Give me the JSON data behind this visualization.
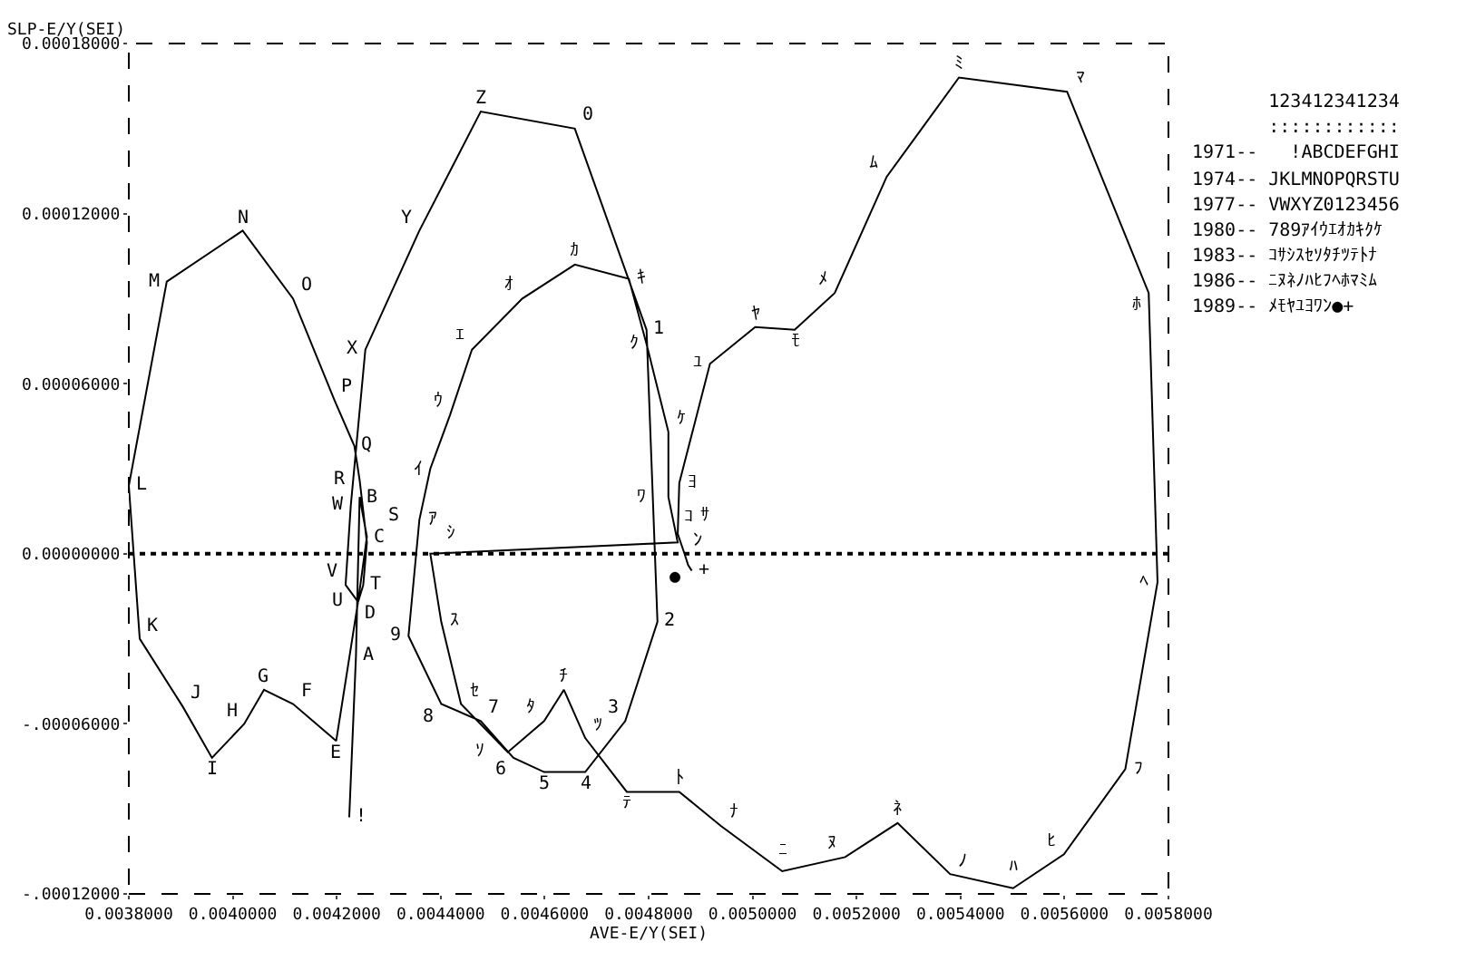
{
  "chart_data": {
    "type": "line",
    "xlabel": "AVE-E/Y(SEI)",
    "ylabel": "SLP-E/Y(SEI)",
    "xlim": [
      0.0038,
      0.0058
    ],
    "xticks": [
      {
        "value": 0.0038,
        "label": "0.0038000"
      },
      {
        "value": 0.004,
        "label": "0.0040000"
      },
      {
        "value": 0.0042,
        "label": "0.0042000"
      },
      {
        "value": 0.0044,
        "label": "0.0044000"
      },
      {
        "value": 0.0046,
        "label": "0.0046000"
      },
      {
        "value": 0.0048,
        "label": "0.0048000"
      },
      {
        "value": 0.005,
        "label": "0.0050000"
      },
      {
        "value": 0.0052,
        "label": "0.0052000"
      },
      {
        "value": 0.0054,
        "label": "0.0054000"
      },
      {
        "value": 0.0056,
        "label": "0.0056000"
      },
      {
        "value": 0.0058,
        "label": "0.0058000"
      }
    ],
    "ylim": [
      -0.00012,
      0.00018
    ],
    "yticks": [
      {
        "value": -0.00012,
        "label": "-.00012000"
      },
      {
        "value": -6e-05,
        "label": "-.00006000"
      },
      {
        "value": 0,
        "label": "0.00000000"
      },
      {
        "value": 6e-05,
        "label": "0.00006000"
      },
      {
        "value": 0.00012,
        "label": "0.00012000"
      },
      {
        "value": 0.00018,
        "label": "0.00018000"
      }
    ],
    "line_style": "solid",
    "ref_lines": [
      {
        "axis": "y",
        "value": 0,
        "line_style": "dotted",
        "color": "#000000"
      }
    ],
    "series": [
      {
        "color": "#000000",
        "x": [
          0.004224,
          0.004237,
          0.004244,
          0.004258,
          0.004241,
          0.004199,
          0.004116,
          0.00406,
          0.004022,
          0.00396,
          0.003904,
          0.003821,
          0.0038,
          0.003873,
          0.004019,
          0.004116,
          0.004196,
          0.004234,
          0.004244,
          0.004258,
          0.004251,
          0.004241,
          0.004217,
          0.004227,
          0.004255,
          0.004359,
          0.004477,
          0.004658,
          0.004796,
          0.004817,
          0.004755,
          0.004678,
          0.004599,
          0.00454,
          0.004477,
          0.004401,
          0.004338,
          0.004359,
          0.00438,
          0.004418,
          0.00446,
          0.004557,
          0.004658,
          0.004762,
          0.004796,
          0.004838,
          0.004838,
          0.004856,
          0.00438,
          0.004401,
          0.004439,
          0.004529,
          0.004599,
          0.004637,
          0.004678,
          0.004758,
          0.004859,
          0.004939,
          0.005057,
          0.005178,
          0.005279,
          0.00538,
          0.005501,
          0.005599,
          0.005717,
          0.005779,
          0.005762,
          0.005605,
          0.005397,
          0.005258,
          0.005158,
          0.005081,
          0.005005,
          0.004918,
          0.004859,
          0.004856,
          0.004869,
          0.004876,
          0.004883
        ],
        "values": [
          -9.3e-05,
          -3.6e-05,
          2e-05,
          6e-06,
          -1.7e-05,
          -6.6e-05,
          -5.3e-05,
          -4.8e-05,
          -6e-05,
          -7.2e-05,
          -5.4e-05,
          -3e-05,
          2.4e-05,
          9.6e-05,
          0.000114,
          9e-05,
          5.4e-05,
          3.8e-05,
          2.6e-05,
          4e-06,
          -1.1e-05,
          -1.7e-05,
          -1.1e-05,
          1.7e-05,
          7.2e-05,
          0.000114,
          0.000156,
          0.00015,
          7.9e-05,
          -2.4e-05,
          -5.9e-05,
          -7.7e-05,
          -7.7e-05,
          -7.2e-05,
          -5.9e-05,
          -5.3e-05,
          -2.9e-05,
          1.2e-05,
          3e-05,
          4.9e-05,
          7.2e-05,
          9e-05,
          0.000102,
          9.7e-05,
          7.4e-05,
          4.3e-05,
          2e-05,
          4e-06,
          0,
          -2.4e-05,
          -5.3e-05,
          -7e-05,
          -5.9e-05,
          -4.8e-05,
          -6.5e-05,
          -8.4e-05,
          -8.4e-05,
          -9.6e-05,
          -0.000112,
          -0.000107,
          -9.5e-05,
          -0.000113,
          -0.000118,
          -0.000106,
          -7.6e-05,
          -1e-05,
          9.2e-05,
          0.000163,
          0.000168,
          0.000133,
          9.2e-05,
          7.9e-05,
          8e-05,
          6.7e-05,
          2.5e-05,
          7e-06,
          0,
          -4e-06,
          -6e-06
        ]
      }
    ],
    "annotations": [
      "       123412341234",
      "       ::::::::::::",
      "1971--   !ABCDEFGHI",
      "1974-- JKLMNOPQRSTU",
      "1977-- VWXYZ0123456",
      "1980-- 789ｱｲｳｴｵｶｷｸｹ",
      "1983-- ｺｻｼｽｾｿﾀﾁﾂﾃﾄﾅ",
      "1986-- ﾆﾇﾈﾉﾊﾋﾌﾍﾎﾏﾐﾑ",
      "1989-- ﾒﾓﾔﾕﾖﾜﾝ●+",
      {
        "text": "!",
        "x": 0.004224,
        "y": -9.3e-05
      },
      {
        "text": "A",
        "x": 0.004237,
        "y": -3.6e-05
      },
      {
        "text": "B",
        "x": 0.004244,
        "y": 2e-05
      },
      {
        "text": "C",
        "x": 0.004258,
        "y": 6e-06
      },
      {
        "text": "D",
        "x": 0.004241,
        "y": -1.7e-05
      },
      {
        "text": "E",
        "x": 0.004199,
        "y": -6.6e-05
      },
      {
        "text": "F",
        "x": 0.004116,
        "y": -5.3e-05
      },
      {
        "text": "G",
        "x": 0.00406,
        "y": -4.8e-05
      },
      {
        "text": "H",
        "x": 0.004022,
        "y": -6e-05
      },
      {
        "text": "I",
        "x": 0.00396,
        "y": -7.2e-05
      },
      {
        "text": "J",
        "x": 0.003904,
        "y": -5.4e-05
      },
      {
        "text": "K",
        "x": 0.003821,
        "y": -3e-05
      },
      {
        "text": "L",
        "x": 0.0038,
        "y": 2.4e-05
      },
      {
        "text": "M",
        "x": 0.003873,
        "y": 9.6e-05
      },
      {
        "text": "N",
        "x": 0.004019,
        "y": 0.000114
      },
      {
        "text": "O",
        "x": 0.004116,
        "y": 9e-05
      },
      {
        "text": "P",
        "x": 0.004196,
        "y": 5.4e-05
      },
      {
        "text": "Q",
        "x": 0.004234,
        "y": 3.8e-05
      },
      {
        "text": "R",
        "x": 0.004244,
        "y": 2.6e-05
      },
      {
        "text": "S",
        "x": 0.004258,
        "y": 4e-06
      },
      {
        "text": "T",
        "x": 0.004251,
        "y": -1.1e-05
      },
      {
        "text": "U",
        "x": 0.004241,
        "y": -1.7e-05
      },
      {
        "text": "V",
        "x": 0.004217,
        "y": -1.1e-05
      },
      {
        "text": "W",
        "x": 0.004227,
        "y": 1.7e-05
      },
      {
        "text": "X",
        "x": 0.004255,
        "y": 7.2e-05
      },
      {
        "text": "Y",
        "x": 0.004359,
        "y": 0.000114
      },
      {
        "text": "Z",
        "x": 0.004477,
        "y": 0.000156
      },
      {
        "text": "0",
        "x": 0.004658,
        "y": 0.00015
      },
      {
        "text": "1",
        "x": 0.004796,
        "y": 7.9e-05
      },
      {
        "text": "2",
        "x": 0.004817,
        "y": -2.4e-05
      },
      {
        "text": "3",
        "x": 0.004755,
        "y": -5.9e-05
      },
      {
        "text": "4",
        "x": 0.004678,
        "y": -7.7e-05
      },
      {
        "text": "5",
        "x": 0.004599,
        "y": -7.7e-05
      },
      {
        "text": "6",
        "x": 0.00454,
        "y": -7.2e-05
      },
      {
        "text": "7",
        "x": 0.004477,
        "y": -5.9e-05
      },
      {
        "text": "8",
        "x": 0.004401,
        "y": -5.3e-05
      },
      {
        "text": "9",
        "x": 0.004338,
        "y": -2.9e-05
      },
      {
        "text": "ｱ",
        "x": 0.004359,
        "y": 1.2e-05
      },
      {
        "text": "ｲ",
        "x": 0.00438,
        "y": 3e-05
      },
      {
        "text": "ｳ",
        "x": 0.004418,
        "y": 4.9e-05
      },
      {
        "text": "ｴ",
        "x": 0.00446,
        "y": 7.2e-05
      },
      {
        "text": "ｵ",
        "x": 0.004557,
        "y": 9e-05
      },
      {
        "text": "ｶ",
        "x": 0.004658,
        "y": 0.000102
      },
      {
        "text": "ｷ",
        "x": 0.004762,
        "y": 9.7e-05
      },
      {
        "text": "ｸ",
        "x": 0.004796,
        "y": 7.4e-05
      },
      {
        "text": "ｹ",
        "x": 0.004838,
        "y": 4.3e-05
      },
      {
        "text": "ｺ",
        "x": 0.004838,
        "y": 2e-05
      },
      {
        "text": "ｻ",
        "x": 0.004856,
        "y": 4e-06
      },
      {
        "text": "ｼ",
        "x": 0.00438,
        "y": 0
      },
      {
        "text": "ｽ",
        "x": 0.004401,
        "y": -2.4e-05
      },
      {
        "text": "ｾ",
        "x": 0.004439,
        "y": -5.3e-05
      },
      {
        "text": "ｿ",
        "x": 0.004529,
        "y": -7e-05
      },
      {
        "text": "ﾀ",
        "x": 0.004599,
        "y": -5.9e-05
      },
      {
        "text": "ﾁ",
        "x": 0.004637,
        "y": -4.8e-05
      },
      {
        "text": "ﾂ",
        "x": 0.004678,
        "y": -6.5e-05
      },
      {
        "text": "ﾃ",
        "x": 0.004758,
        "y": -8.4e-05
      },
      {
        "text": "ﾄ",
        "x": 0.004859,
        "y": -8.4e-05
      },
      {
        "text": "ﾅ",
        "x": 0.004939,
        "y": -9.6e-05
      },
      {
        "text": "ﾆ",
        "x": 0.005057,
        "y": -0.000112
      },
      {
        "text": "ﾇ",
        "x": 0.005178,
        "y": -0.000107
      },
      {
        "text": "ﾈ",
        "x": 0.005279,
        "y": -9.5e-05
      },
      {
        "text": "ﾉ",
        "x": 0.00538,
        "y": -0.000113
      },
      {
        "text": "ﾊ",
        "x": 0.005501,
        "y": -0.000118
      },
      {
        "text": "ﾋ",
        "x": 0.005599,
        "y": -0.000106
      },
      {
        "text": "ﾌ",
        "x": 0.005717,
        "y": -7.6e-05
      },
      {
        "text": "ﾍ",
        "x": 0.005779,
        "y": -1e-05
      },
      {
        "text": "ﾎ",
        "x": 0.005762,
        "y": 9.2e-05
      },
      {
        "text": "ﾏ",
        "x": 0.005605,
        "y": 0.000163
      },
      {
        "text": "ﾐ",
        "x": 0.005397,
        "y": 0.000168
      },
      {
        "text": "ﾑ",
        "x": 0.005258,
        "y": 0.000133
      },
      {
        "text": "ﾒ",
        "x": 0.005158,
        "y": 9.2e-05
      },
      {
        "text": "ﾓ",
        "x": 0.005081,
        "y": 7.9e-05
      },
      {
        "text": "ﾔ",
        "x": 0.005005,
        "y": 8e-05
      },
      {
        "text": "ﾕ",
        "x": 0.004918,
        "y": 6.7e-05
      },
      {
        "text": "ﾖ",
        "x": 0.004859,
        "y": 2.5e-05
      },
      {
        "text": "ﾜ",
        "x": 0.004856,
        "y": 7e-06
      },
      {
        "text": "ﾝ",
        "x": 0.004869,
        "y": 0
      },
      {
        "text": "●",
        "x": 0.004876,
        "y": -4e-06
      },
      {
        "text": "+",
        "x": 0.004883,
        "y": -6e-06
      }
    ]
  }
}
